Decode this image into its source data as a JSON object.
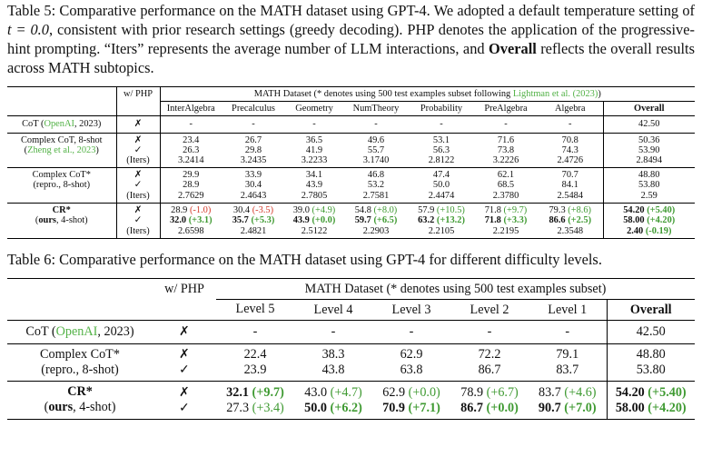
{
  "table5": {
    "caption_prefix": "Table 5: Comparative performance on the MATH dataset using GPT-4. We adopted a default temperature setting of ",
    "caption_math": "t = 0.0",
    "caption_mid": ", consistent with prior research settings (greedy decoding). PHP denotes the application of the progressive-hint prompting. “Iters” represents the average number of LLM interactions, and ",
    "caption_bold": "Overall",
    "caption_suffix": " reflects the overall results across MATH subtopics.",
    "php_header": "w/ PHP",
    "dataset_header_prefix": "MATH Dataset (* denotes using 500 test examples subset following ",
    "dataset_header_cite": "Lightman et al. (2023)",
    "dataset_header_suffix": ")",
    "columns": [
      "InterAlgebra",
      "Precalculus",
      "Geometry",
      "NumTheory",
      "Probability",
      "PreAlgebra",
      "Algebra",
      "Overall"
    ],
    "cot": {
      "name": "CoT (",
      "cite": "OpenAI",
      "year": ", 2023)",
      "php": "✗",
      "values": [
        "-",
        "-",
        "-",
        "-",
        "-",
        "-",
        "-",
        "42.50"
      ]
    },
    "complex": {
      "line1": "Complex CoT, 8-shot",
      "cite_open": "(",
      "cite": "Zheng et al., 2023",
      "cite_close": ")",
      "php": [
        "✗",
        "✓",
        "(Iters)"
      ],
      "rows": [
        [
          "23.4",
          "26.7",
          "36.5",
          "49.6",
          "53.1",
          "71.6",
          "70.8",
          "50.36"
        ],
        [
          "26.3",
          "29.8",
          "41.9",
          "55.7",
          "56.3",
          "73.8",
          "74.3",
          "53.90"
        ],
        [
          "3.2414",
          "3.2435",
          "3.2233",
          "3.1740",
          "2.8122",
          "3.2226",
          "2.4726",
          "2.8494"
        ]
      ]
    },
    "repro": {
      "line1": "Complex CoT*",
      "line2": "(repro., 8-shot)",
      "php": [
        "✗",
        "✓",
        "(Iters)"
      ],
      "rows": [
        [
          "29.9",
          "33.9",
          "34.1",
          "46.8",
          "47.4",
          "62.1",
          "70.7",
          "48.80"
        ],
        [
          "28.9",
          "30.4",
          "43.9",
          "53.2",
          "50.0",
          "68.5",
          "84.1",
          "53.80"
        ],
        [
          "2.7629",
          "2.4643",
          "2.7805",
          "2.7581",
          "2.4474",
          "2.3780",
          "2.5484",
          "2.59"
        ]
      ]
    },
    "cr": {
      "line1": "CR*",
      "line2_bold": "ours",
      "line2_rest": ", 4-shot)",
      "line2_open": "(",
      "php": [
        "✗",
        "✓",
        "(Iters)"
      ],
      "row1": [
        {
          "v": "28.9",
          "d": "-1.0",
          "c": "red",
          "b": false
        },
        {
          "v": "30.4",
          "d": "-3.5",
          "c": "red",
          "b": false
        },
        {
          "v": "39.0",
          "d": "+4.9",
          "c": "green",
          "b": false
        },
        {
          "v": "54.8",
          "d": "+8.0",
          "c": "green",
          "b": false
        },
        {
          "v": "57.9",
          "d": "+10.5",
          "c": "green",
          "b": false
        },
        {
          "v": "71.8",
          "d": "+9.7",
          "c": "green",
          "b": false
        },
        {
          "v": "79.3",
          "d": "+8.6",
          "c": "green",
          "b": false
        },
        {
          "v": "54.20",
          "d": "+5.40",
          "c": "green",
          "b": true
        }
      ],
      "row2": [
        {
          "v": "32.0",
          "d": "+3.1",
          "c": "green",
          "b": true
        },
        {
          "v": "35.7",
          "d": "+5.3",
          "c": "green",
          "b": true
        },
        {
          "v": "43.9",
          "d": "+0.0",
          "c": "green",
          "b": true
        },
        {
          "v": "59.7",
          "d": "+6.5",
          "c": "green",
          "b": true
        },
        {
          "v": "63.2",
          "d": "+13.2",
          "c": "green",
          "b": true
        },
        {
          "v": "71.8",
          "d": "+3.3",
          "c": "green",
          "b": true
        },
        {
          "v": "86.6",
          "d": "+2.5",
          "c": "green",
          "b": true
        },
        {
          "v": "58.00",
          "d": "+4.20",
          "c": "green",
          "b": true
        }
      ],
      "row3": [
        {
          "v": "2.6598",
          "d": "",
          "c": "",
          "b": false
        },
        {
          "v": "2.4821",
          "d": "",
          "c": "",
          "b": false
        },
        {
          "v": "2.5122",
          "d": "",
          "c": "",
          "b": false
        },
        {
          "v": "2.2903",
          "d": "",
          "c": "",
          "b": false
        },
        {
          "v": "2.2105",
          "d": "",
          "c": "",
          "b": false
        },
        {
          "v": "2.2195",
          "d": "",
          "c": "",
          "b": false
        },
        {
          "v": "2.3548",
          "d": "",
          "c": "",
          "b": false
        },
        {
          "v": "2.40",
          "d": "-0.19",
          "c": "green",
          "b": true
        }
      ]
    }
  },
  "table6": {
    "caption": "Table 6: Comparative performance on the MATH dataset using GPT-4 for different difficulty levels.",
    "php_header": "w/ PHP",
    "dataset_header": "MATH Dataset (* denotes using 500 test examples subset)",
    "columns": [
      "Level 5",
      "Level 4",
      "Level 3",
      "Level 2",
      "Level 1",
      "Overall"
    ],
    "cot": {
      "name": "CoT (",
      "cite": "OpenAI",
      "year": ", 2023)",
      "php": "✗",
      "values": [
        "-",
        "-",
        "-",
        "-",
        "-",
        "42.50"
      ]
    },
    "repro": {
      "line1": "Complex CoT*",
      "line2": "(repro., 8-shot)",
      "php": [
        "✗",
        "✓"
      ],
      "rows": [
        [
          "22.4",
          "38.3",
          "62.9",
          "72.2",
          "79.1",
          "48.80"
        ],
        [
          "23.9",
          "43.8",
          "63.8",
          "86.7",
          "83.7",
          "53.80"
        ]
      ]
    },
    "cr": {
      "line1": "CR*",
      "line2_open": "(",
      "line2_bold": "ours",
      "line2_rest": ", 4-shot)",
      "php": [
        "✗",
        "✓"
      ],
      "row1": [
        {
          "v": "32.1",
          "d": "+9.7",
          "b": true
        },
        {
          "v": "43.0",
          "d": "+4.7",
          "b": false
        },
        {
          "v": "62.9",
          "d": "+0.0",
          "b": false
        },
        {
          "v": "78.9",
          "d": "+6.7",
          "b": false
        },
        {
          "v": "83.7",
          "d": "+4.6",
          "b": false
        },
        {
          "v": "54.20",
          "d": "+5.40",
          "b": true
        }
      ],
      "row2": [
        {
          "v": "27.3",
          "d": "+3.4",
          "b": false
        },
        {
          "v": "50.0",
          "d": "+6.2",
          "b": true
        },
        {
          "v": "70.9",
          "d": "+7.1",
          "b": true
        },
        {
          "v": "86.7",
          "d": "+0.0",
          "b": true
        },
        {
          "v": "90.7",
          "d": "+7.0",
          "b": true
        },
        {
          "v": "58.00",
          "d": "+4.20",
          "b": true
        }
      ]
    }
  }
}
